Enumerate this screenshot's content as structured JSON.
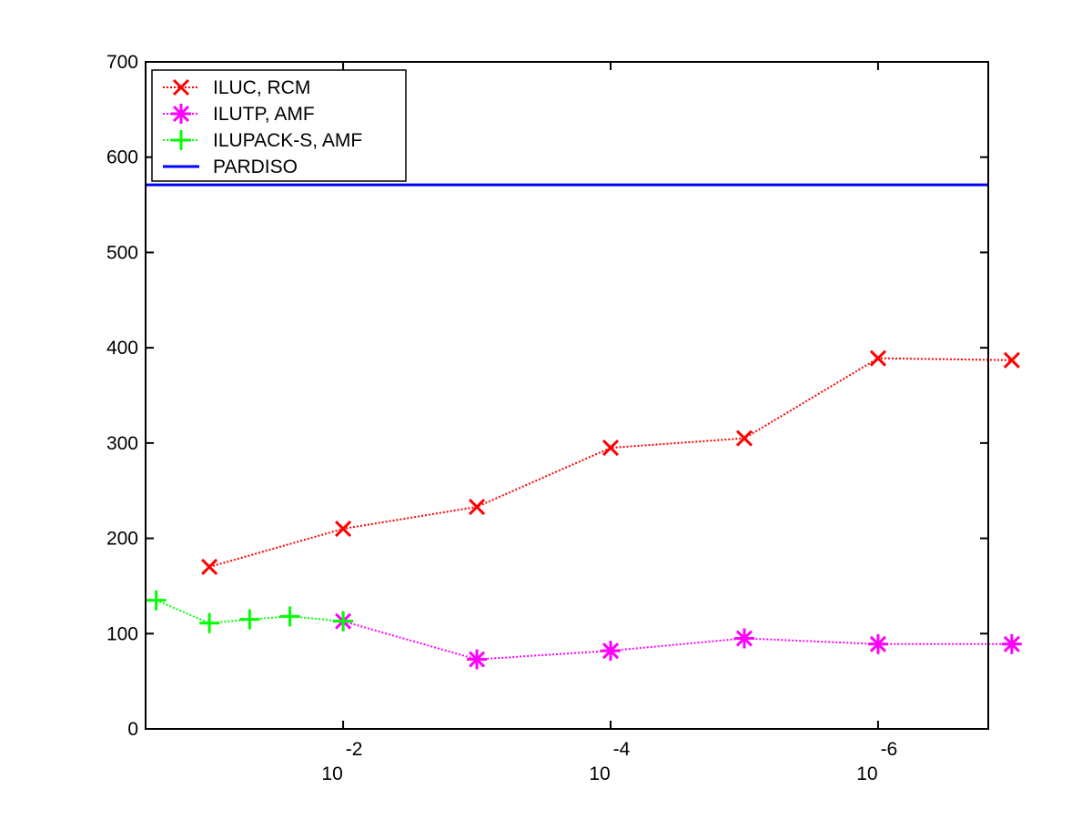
{
  "chart_data": {
    "type": "line",
    "title": "",
    "xlabel": "",
    "ylabel": "",
    "x_scale": "log",
    "x_reversed": true,
    "xlim": [
      0.3,
      1.5e-07
    ],
    "ylim": [
      0,
      700
    ],
    "grid": false,
    "legend_position": "top-left",
    "y_ticks": [
      0,
      100,
      200,
      300,
      400,
      500,
      600,
      700
    ],
    "x_ticks": [
      {
        "value": 0.01,
        "base": "10",
        "exponent": "-2"
      },
      {
        "value": 0.0001,
        "base": "10",
        "exponent": "-4"
      },
      {
        "value": 1e-06,
        "base": "10",
        "exponent": "-6"
      }
    ],
    "series": [
      {
        "name": "ILUC, RCM",
        "color": "#ff0000",
        "line_style": "dotted",
        "marker": "x",
        "x": [
          0.1,
          0.01,
          0.001,
          0.0001,
          1e-05,
          1e-06,
          1e-07
        ],
        "y": [
          170,
          210,
          233,
          295,
          305,
          389,
          387
        ]
      },
      {
        "name": "ILUTP, AMF",
        "color": "#ff00ff",
        "line_style": "dotted",
        "marker": "asterisk",
        "x": [
          0.01,
          0.001,
          0.0001,
          1e-05,
          1e-06,
          1e-07
        ],
        "y": [
          113,
          73,
          82,
          95,
          89,
          89
        ]
      },
      {
        "name": "ILUPACK-S, AMF",
        "color": "#00ff00",
        "line_style": "dotted",
        "marker": "plus",
        "x": [
          0.25,
          0.1,
          0.05,
          0.025,
          0.01
        ],
        "y": [
          135,
          111,
          115,
          118,
          113
        ]
      },
      {
        "name": "PARDISO",
        "color": "#0000ff",
        "line_style": "solid",
        "marker": "none",
        "x": [
          0.3,
          1.5e-07
        ],
        "y": [
          571,
          571
        ]
      }
    ]
  }
}
